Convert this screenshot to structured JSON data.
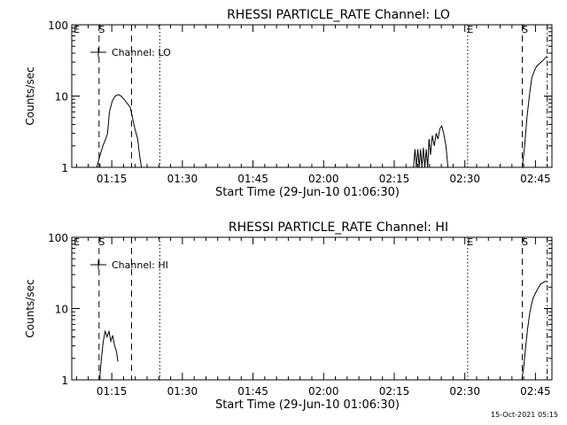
{
  "footer_timestamp": "15-Oct-2021 05:15",
  "chart_data": [
    {
      "type": "line",
      "title": "RHESSI PARTICLE_RATE Channel: LO",
      "xlabel": "Start Time (29-Jun-10 01:06:30)",
      "ylabel": "Counts/sec",
      "x_unit": "minutes since 01:06:30",
      "xlim": [
        0,
        102
      ],
      "xticks": [
        {
          "value": 8.5,
          "label": "01:15"
        },
        {
          "value": 23.5,
          "label": "01:30"
        },
        {
          "value": 38.5,
          "label": "01:45"
        },
        {
          "value": 53.5,
          "label": "02:00"
        },
        {
          "value": 68.5,
          "label": "02:15"
        },
        {
          "value": 83.5,
          "label": "02:30"
        },
        {
          "value": 98.5,
          "label": "02:45"
        }
      ],
      "y_scale": "log",
      "ylim": [
        1,
        100
      ],
      "yticks": [
        {
          "value": 1,
          "label": "1"
        },
        {
          "value": 10,
          "label": "10"
        },
        {
          "value": 100,
          "label": "100"
        }
      ],
      "legend": {
        "label": "Channel: LO",
        "position": "top-left"
      },
      "markers": [
        {
          "x": 0.4,
          "style": "none",
          "label": "E"
        },
        {
          "x": 5.8,
          "style": "dashed",
          "label": "S"
        },
        {
          "x": 12.7,
          "style": "dashed",
          "label": ""
        },
        {
          "x": 18.7,
          "style": "dotted",
          "label": ""
        },
        {
          "x": 84.1,
          "style": "dotted",
          "label": "E"
        },
        {
          "x": 95.7,
          "style": "dashed",
          "label": "S"
        },
        {
          "x": 101.0,
          "style": "dashdot",
          "label": ""
        }
      ],
      "series": [
        {
          "name": "Channel: LO",
          "segments": [
            [
              [
                5.3,
                1.0
              ],
              [
                5.9,
                1.4
              ],
              [
                6.6,
                2.0
              ],
              [
                7.2,
                2.5
              ],
              [
                7.6,
                3.0
              ],
              [
                8.0,
                6.0
              ],
              [
                8.6,
                8.5
              ],
              [
                9.2,
                10.0
              ],
              [
                9.9,
                10.5
              ],
              [
                10.5,
                10.0
              ],
              [
                11.1,
                9.0
              ],
              [
                11.7,
                8.0
              ],
              [
                12.4,
                7.0
              ],
              [
                12.9,
                5.0
              ],
              [
                13.4,
                3.5
              ],
              [
                14.0,
                2.5
              ],
              [
                14.4,
                1.5
              ],
              [
                14.8,
                1.0
              ]
            ],
            [
              [
                72.6,
                1.0
              ],
              [
                72.9,
                1.8
              ],
              [
                73.2,
                1.0
              ],
              [
                73.5,
                1.8
              ],
              [
                73.8,
                1.0
              ],
              [
                74.1,
                1.8
              ],
              [
                74.4,
                1.0
              ],
              [
                74.7,
                1.9
              ],
              [
                75.0,
                1.0
              ],
              [
                75.3,
                1.8
              ],
              [
                75.6,
                1.0
              ],
              [
                75.9,
                2.5
              ],
              [
                76.2,
                1.5
              ],
              [
                76.6,
                2.8
              ],
              [
                77.0,
                2.0
              ],
              [
                77.4,
                3.0
              ],
              [
                77.8,
                2.5
              ],
              [
                78.2,
                3.5
              ],
              [
                78.6,
                3.8
              ],
              [
                79.0,
                3.0
              ],
              [
                79.5,
                2.0
              ],
              [
                79.9,
                1.0
              ]
            ],
            [
              [
                95.7,
                1.0
              ],
              [
                96.2,
                2.0
              ],
              [
                96.7,
                5.0
              ],
              [
                97.2,
                10.0
              ],
              [
                97.7,
                18.0
              ],
              [
                98.2,
                22.0
              ],
              [
                98.7,
                26.0
              ],
              [
                99.2,
                28.0
              ],
              [
                99.7,
                30.0
              ],
              [
                100.2,
                32.0
              ],
              [
                100.7,
                35.0
              ],
              [
                101.0,
                36.0
              ]
            ]
          ]
        }
      ]
    },
    {
      "type": "line",
      "title": "RHESSI PARTICLE_RATE Channel: HI",
      "xlabel": "Start Time (29-Jun-10 01:06:30)",
      "ylabel": "Counts/sec",
      "x_unit": "minutes since 01:06:30",
      "xlim": [
        0,
        102
      ],
      "xticks": [
        {
          "value": 8.5,
          "label": "01:15"
        },
        {
          "value": 23.5,
          "label": "01:30"
        },
        {
          "value": 38.5,
          "label": "01:45"
        },
        {
          "value": 53.5,
          "label": "02:00"
        },
        {
          "value": 68.5,
          "label": "02:15"
        },
        {
          "value": 83.5,
          "label": "02:30"
        },
        {
          "value": 98.5,
          "label": "02:45"
        }
      ],
      "y_scale": "log",
      "ylim": [
        1,
        100
      ],
      "yticks": [
        {
          "value": 1,
          "label": "1"
        },
        {
          "value": 10,
          "label": "10"
        },
        {
          "value": 100,
          "label": "100"
        }
      ],
      "legend": {
        "label": "Channel: HI",
        "position": "top-left"
      },
      "markers": [
        {
          "x": 0.4,
          "style": "none",
          "label": "E"
        },
        {
          "x": 5.8,
          "style": "dashed",
          "label": "S"
        },
        {
          "x": 12.7,
          "style": "dashed",
          "label": ""
        },
        {
          "x": 18.7,
          "style": "dotted",
          "label": ""
        },
        {
          "x": 84.1,
          "style": "dotted",
          "label": "E"
        },
        {
          "x": 95.7,
          "style": "dashed",
          "label": "S"
        },
        {
          "x": 101.0,
          "style": "dashdot",
          "label": ""
        }
      ],
      "series": [
        {
          "name": "Channel: HI",
          "segments": [
            [
              [
                5.9,
                1.0
              ],
              [
                6.3,
                2.0
              ],
              [
                6.7,
                3.5
              ],
              [
                7.1,
                4.8
              ],
              [
                7.5,
                4.0
              ],
              [
                7.9,
                4.8
              ],
              [
                8.3,
                3.5
              ],
              [
                8.7,
                4.2
              ],
              [
                9.1,
                3.0
              ],
              [
                9.5,
                2.5
              ],
              [
                9.8,
                1.8
              ]
            ],
            [
              [
                95.6,
                1.0
              ],
              [
                96.0,
                1.5
              ],
              [
                96.4,
                2.8
              ],
              [
                96.8,
                5.0
              ],
              [
                97.2,
                8.0
              ],
              [
                97.6,
                11.0
              ],
              [
                98.0,
                14.0
              ],
              [
                98.4,
                16.0
              ],
              [
                98.8,
                18.0
              ],
              [
                99.2,
                20.0
              ],
              [
                99.6,
                22.0
              ],
              [
                100.0,
                23.0
              ],
              [
                100.5,
                24.0
              ],
              [
                101.0,
                24.0
              ]
            ]
          ]
        }
      ]
    }
  ]
}
